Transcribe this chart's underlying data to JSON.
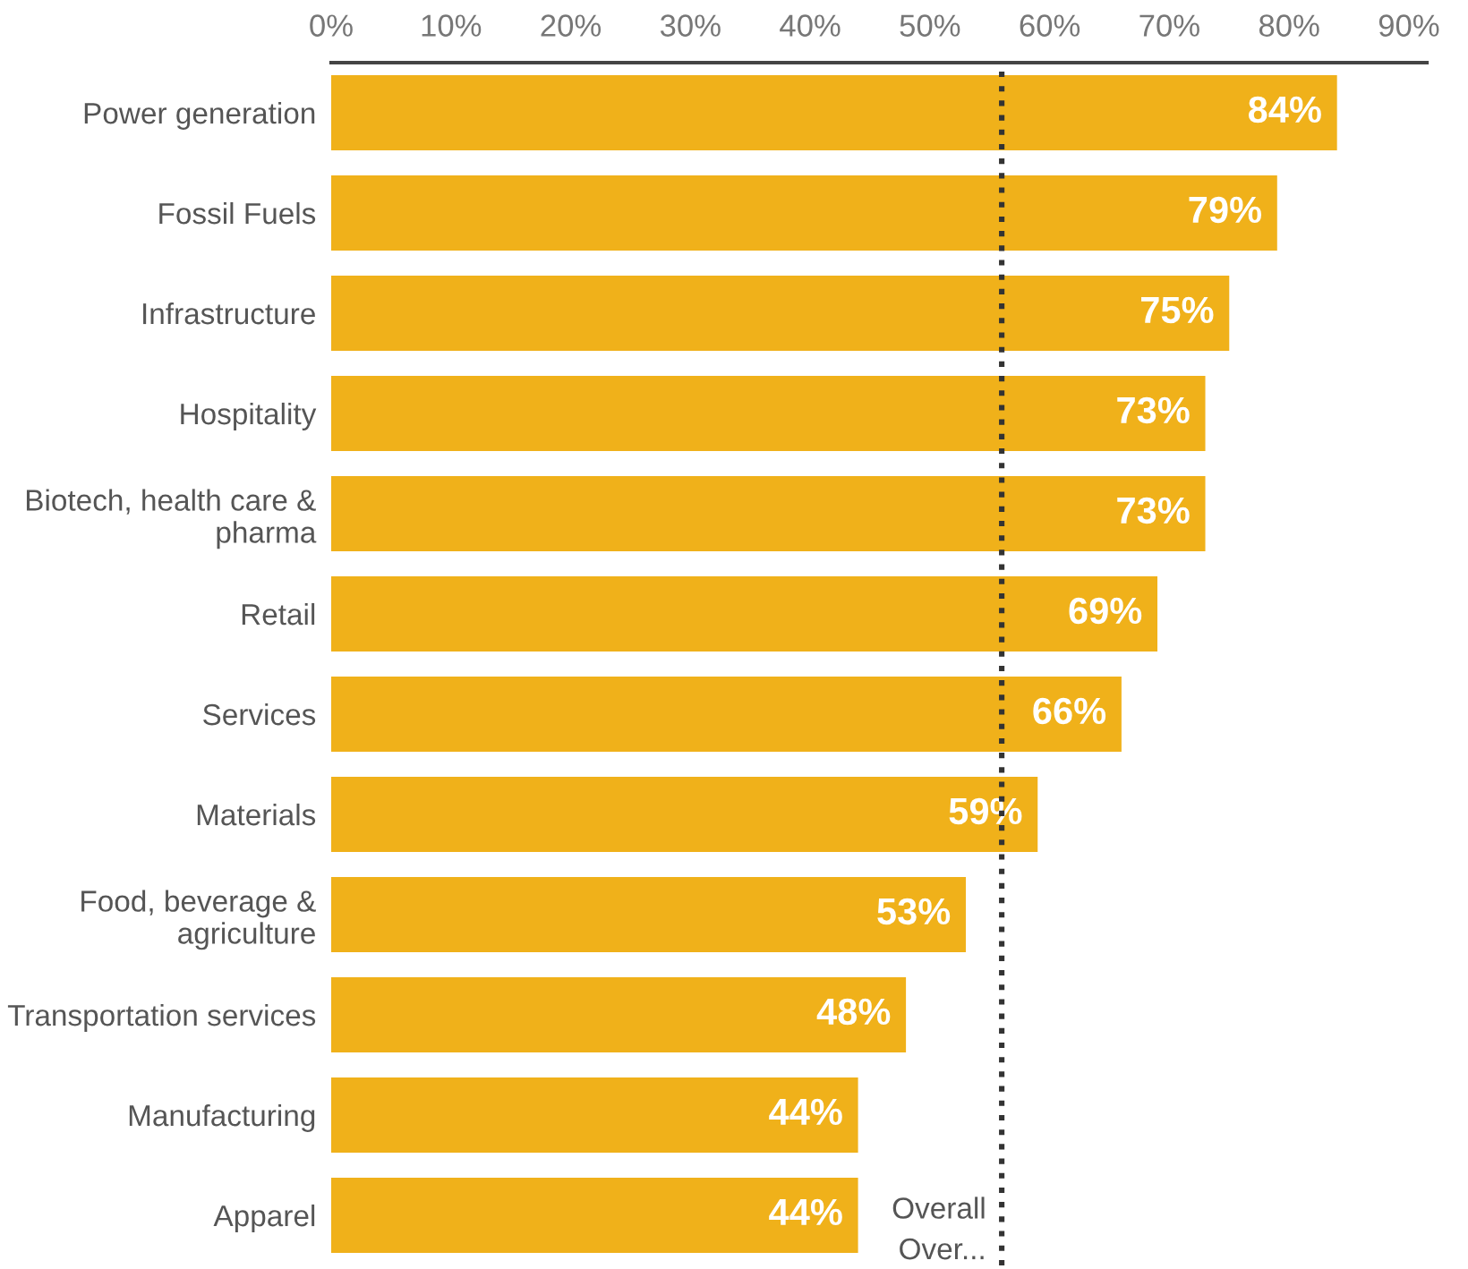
{
  "chart_data": {
    "type": "bar",
    "orientation": "horizontal",
    "categories": [
      "Power generation",
      "Fossil Fuels",
      "Infrastructure",
      "Hospitality",
      "Biotech, health care &\npharma",
      "Retail",
      "Services",
      "Materials",
      "Food, beverage &\nagriculture",
      "Transportation services",
      "Manufacturing",
      "Apparel"
    ],
    "values": [
      84,
      79,
      75,
      73,
      73,
      69,
      66,
      59,
      53,
      48,
      44,
      44
    ],
    "color": "#f0b11a",
    "value_labels": [
      "84%",
      "79%",
      "75%",
      "73%",
      "73%",
      "69%",
      "66%",
      "59%",
      "53%",
      "48%",
      "44%",
      "44%"
    ],
    "xlim": [
      0,
      91.5
    ],
    "xticks": [
      {
        "value": 0,
        "label": "0%"
      },
      {
        "value": 10,
        "label": "10%"
      },
      {
        "value": 20,
        "label": "20%"
      },
      {
        "value": 30,
        "label": "30%"
      },
      {
        "value": 40,
        "label": "40%"
      },
      {
        "value": 50,
        "label": "50%"
      },
      {
        "value": 60,
        "label": "60%"
      },
      {
        "value": 70,
        "label": "70%"
      },
      {
        "value": 80,
        "label": "80%"
      },
      {
        "value": 90,
        "label": "90%"
      }
    ],
    "ref_lines": [
      {
        "axis": "x",
        "value": 56,
        "label": "Overall\nOver...",
        "color": "#333333",
        "line_style": "dotted"
      }
    ],
    "grid": false,
    "legend": false
  }
}
